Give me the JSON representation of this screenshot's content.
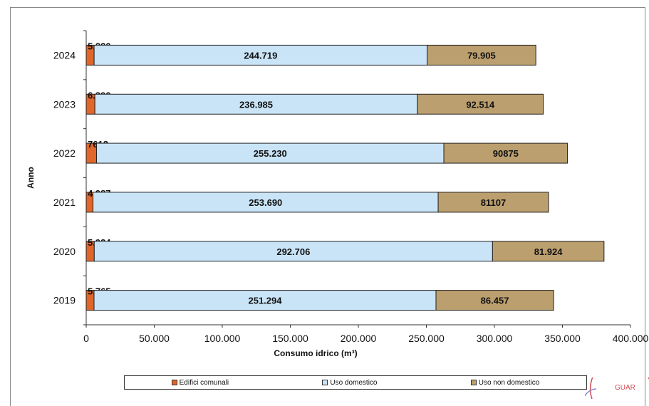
{
  "chart_data": {
    "type": "bar",
    "orientation": "horizontal",
    "stacked": true,
    "categories": [
      "2024",
      "2023",
      "2022",
      "2021",
      "2020",
      "2019"
    ],
    "series": [
      {
        "name": "Edifici comunali",
        "color": "#e0662a",
        "values": [
          5820,
          6390,
          7612,
          4987,
          5924,
          5765
        ],
        "labels": [
          "5.820",
          "6.390",
          "7612",
          "4.987",
          "5.924",
          "5.765"
        ]
      },
      {
        "name": "Uso domestico",
        "color": "#c9e4f7",
        "values": [
          244719,
          236985,
          255230,
          253690,
          292706,
          251294
        ],
        "labels": [
          "244.719",
          "236.985",
          "255.230",
          "253.690",
          "292.706",
          "251.294"
        ]
      },
      {
        "name": "Uso non domestico",
        "color": "#bb9f6e",
        "values": [
          79905,
          92514,
          90875,
          81107,
          81924,
          86457
        ],
        "labels": [
          "79.905",
          "92.514",
          "90875",
          "81107",
          "81.924",
          "86.457"
        ]
      }
    ],
    "xlabel": "Consumo idrico (m³)",
    "ylabel": "Anno",
    "xlim": [
      0,
      400000
    ],
    "xticks": [
      "0",
      "50.000",
      "100.000",
      "150.000",
      "200.000",
      "250.000",
      "300.000",
      "350.000",
      "400.000"
    ],
    "grid": false,
    "legend_position": "bottom"
  },
  "stamp_text": "GUAR"
}
